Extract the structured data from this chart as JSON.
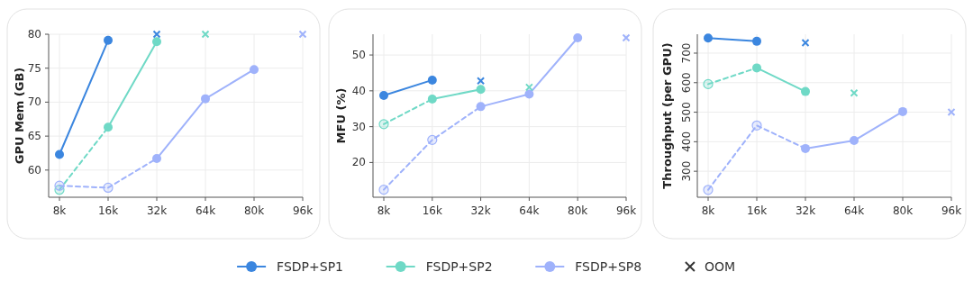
{
  "chart_data": [
    {
      "type": "line",
      "ylabel": "GPU Mem (GB)",
      "categories": [
        "8k",
        "16k",
        "32k",
        "64k",
        "80k",
        "96k"
      ],
      "ylim": [
        56,
        80
      ],
      "yticks": [
        60,
        65,
        70,
        75,
        80
      ],
      "grid": true,
      "marker": "circle",
      "legend": "bottom",
      "annotations": [
        "OOM"
      ],
      "series": [
        {
          "line_style": "dashed",
          "color": "#6fd9c6",
          "values": [
            57.1,
            66.3,
            null,
            null,
            null,
            null
          ]
        },
        {
          "line_style": "dashed",
          "color": "#9fb2fb",
          "values": [
            57.7,
            57.4,
            61.7,
            null,
            null,
            null
          ]
        },
        {
          "name": "FSDP+SP1",
          "color": "#3b86df",
          "values": [
            62.3,
            79.1,
            null,
            null,
            null,
            null
          ]
        },
        {
          "name": "FSDP+SP2",
          "color": "#6fd9c6",
          "values": [
            null,
            66.3,
            78.9,
            null,
            null,
            null
          ]
        },
        {
          "name": "FSDP+SP8",
          "color": "#9fb2fb",
          "values": [
            null,
            null,
            61.7,
            70.5,
            74.8,
            null
          ]
        },
        {
          "type": "scatter",
          "marker": "cross",
          "colors": [
            "#3b86df",
            "#6fd9c6",
            "#9fb2fb"
          ],
          "x": [
            "32k",
            "64k",
            "96k"
          ],
          "values": [
            80,
            80,
            80
          ]
        }
      ]
    },
    {
      "type": "line",
      "ylabel": "MFU (%)",
      "categories": [
        "8k",
        "16k",
        "32k",
        "64k",
        "80k",
        "96k"
      ],
      "ylim": [
        10.3,
        55.8
      ],
      "yticks": [
        20,
        30,
        40,
        50
      ],
      "grid": true,
      "marker": "circle",
      "series": [
        {
          "line_style": "dashed",
          "color": "#6fd9c6",
          "values": [
            30.7,
            37.7,
            null,
            null,
            null,
            null
          ]
        },
        {
          "line_style": "dashed",
          "color": "#9fb2fb",
          "values": [
            12.4,
            26.3,
            35.6,
            null,
            null,
            null
          ]
        },
        {
          "color": "#3b86df",
          "values": [
            38.7,
            43.0,
            null,
            null,
            null,
            null
          ]
        },
        {
          "color": "#6fd9c6",
          "values": [
            null,
            37.7,
            40.4,
            null,
            null,
            null
          ]
        },
        {
          "color": "#9fb2fb",
          "values": [
            null,
            null,
            35.6,
            39.1,
            54.8,
            null
          ]
        },
        {
          "type": "scatter",
          "marker": "cross",
          "colors": [
            "#3b86df",
            "#6fd9c6",
            "#9fb2fb"
          ],
          "x": [
            "32k",
            "64k",
            "96k"
          ],
          "values": [
            42.8,
            41.0,
            54.8
          ]
        }
      ]
    },
    {
      "type": "line",
      "ylabel": "Throughput (per GPU)",
      "categories": [
        "8k",
        "16k",
        "32k",
        "64k",
        "80k",
        "96k"
      ],
      "ylim": [
        212,
        764
      ],
      "yticks": [
        300,
        400,
        500,
        600,
        700
      ],
      "grid": true,
      "marker": "circle",
      "series": [
        {
          "line_style": "dashed",
          "color": "#6fd9c6",
          "values": [
            595,
            650,
            null,
            null,
            null,
            null
          ]
        },
        {
          "line_style": "dashed",
          "color": "#9fb2fb",
          "values": [
            237,
            455,
            377,
            null,
            null,
            null
          ]
        },
        {
          "color": "#3b86df",
          "values": [
            751,
            740,
            null,
            null,
            null,
            null
          ]
        },
        {
          "color": "#6fd9c6",
          "values": [
            null,
            650,
            570,
            null,
            null,
            null
          ]
        },
        {
          "color": "#9fb2fb",
          "values": [
            null,
            null,
            377,
            404,
            502,
            null
          ]
        },
        {
          "type": "scatter",
          "marker": "cross",
          "colors": [
            "#3b86df",
            "#6fd9c6",
            "#9fb2fb"
          ],
          "x": [
            "32k",
            "64k",
            "96k"
          ],
          "values": [
            735,
            565,
            500
          ]
        }
      ]
    }
  ]
}
